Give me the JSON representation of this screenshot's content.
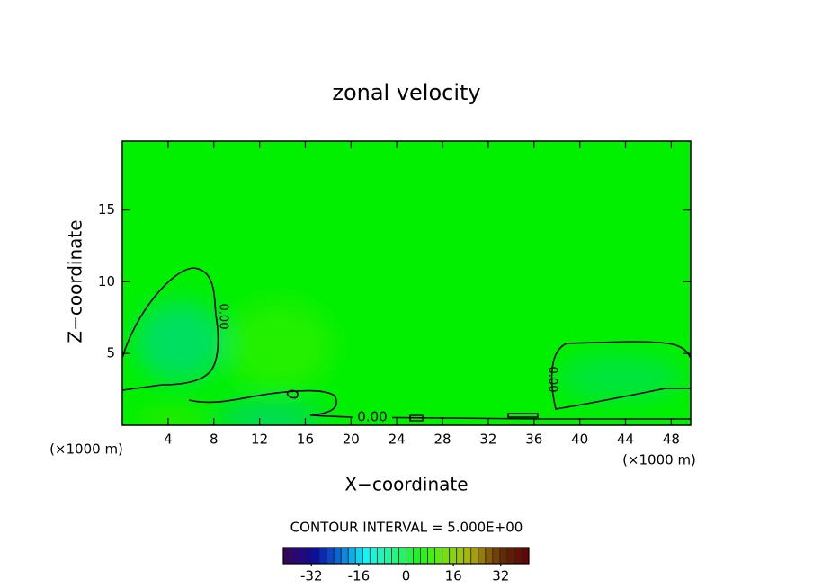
{
  "chart_data": {
    "type": "contour",
    "title": "zonal velocity",
    "xlabel": "X−coordinate",
    "ylabel": "Z−coordinate",
    "x_unit": "(×1000 m)",
    "y_unit": "(×1000 m)",
    "xlim": [
      0,
      49.7
    ],
    "ylim": [
      0,
      19.8
    ],
    "xticks": [
      4,
      8,
      12,
      16,
      20,
      24,
      28,
      32,
      36,
      40,
      44,
      48
    ],
    "yticks": [
      5,
      10,
      15
    ],
    "contour_labels": [
      "0.00",
      "0.00",
      "0.00"
    ],
    "colorbar": {
      "title": "CONTOUR INTERVAL = 5.000E+00",
      "lim": [
        -41.5,
        41.5
      ],
      "ticks": [
        -32,
        -16,
        0,
        16,
        32
      ]
    }
  }
}
